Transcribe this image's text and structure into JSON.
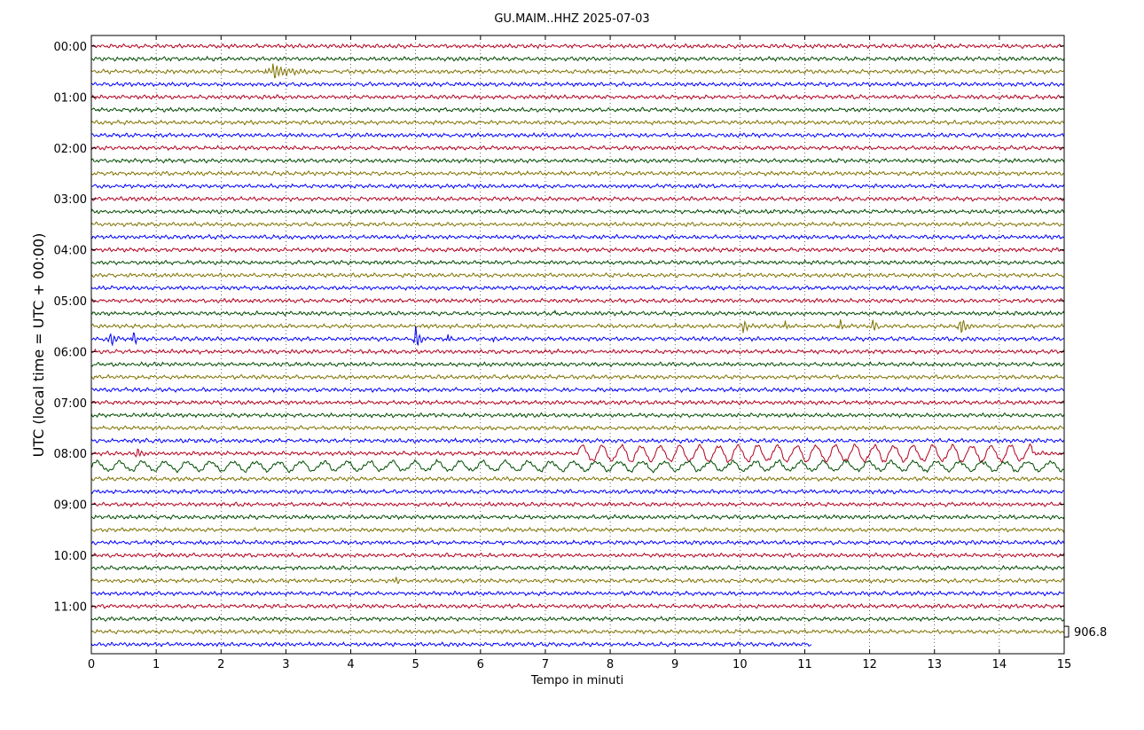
{
  "chart_data": {
    "type": "line",
    "title": "GU.MAIM..HHZ 2025-07-03",
    "xlabel": "Tempo in minuti",
    "ylabel": "UTC (local time = UTC + 00:00)",
    "xlim": [
      0,
      15
    ],
    "x_ticks": [
      "0",
      "1",
      "2",
      "3",
      "4",
      "5",
      "6",
      "7",
      "8",
      "9",
      "10",
      "11",
      "12",
      "13",
      "14",
      "15"
    ],
    "y_ticks": [
      "00:00",
      "01:00",
      "02:00",
      "03:00",
      "04:00",
      "05:00",
      "06:00",
      "07:00",
      "08:00",
      "09:00",
      "10:00",
      "11:00"
    ],
    "rows_per_hour": 4,
    "row_count": 48,
    "last_row_end_minute": 11.1,
    "grid": "vertical dotted at each minute",
    "trace_colors": [
      "#b2001f",
      "#004c00",
      "#807200",
      "#0000ff"
    ],
    "scale_label": "906.8",
    "events": [
      {
        "row": 2,
        "minute": 2.8,
        "amplitude": 1.4,
        "width": 0.6
      },
      {
        "row": 23,
        "minute": 0.3,
        "amplitude": 1.0,
        "width": 0.25
      },
      {
        "row": 23,
        "minute": 0.65,
        "amplitude": 1.6,
        "width": 0.15
      },
      {
        "row": 23,
        "minute": 5.0,
        "amplitude": 2.0,
        "width": 0.15
      },
      {
        "row": 23,
        "minute": 5.5,
        "amplitude": 1.0,
        "width": 0.15
      },
      {
        "row": 23,
        "minute": 6.2,
        "amplitude": 0.6,
        "width": 0.1
      },
      {
        "row": 22,
        "minute": 10.05,
        "amplitude": 1.2,
        "width": 0.15
      },
      {
        "row": 22,
        "minute": 10.7,
        "amplitude": 1.0,
        "width": 0.15
      },
      {
        "row": 22,
        "minute": 11.55,
        "amplitude": 1.2,
        "width": 0.15
      },
      {
        "row": 22,
        "minute": 12.05,
        "amplitude": 1.2,
        "width": 0.15
      },
      {
        "row": 22,
        "minute": 13.4,
        "amplitude": 1.5,
        "width": 0.2
      },
      {
        "row": 32,
        "minute": 0.7,
        "amplitude": 0.8,
        "width": 0.15
      },
      {
        "row": 35,
        "minute": 4.5,
        "amplitude": 0.5,
        "width": 0.15
      },
      {
        "row": 42,
        "minute": 4.7,
        "amplitude": 0.7,
        "width": 0.2
      },
      {
        "row": 21,
        "minute": 7.15,
        "amplitude": 0.5,
        "width": 0.1
      }
    ],
    "enhanced_rows": [
      {
        "row": 32,
        "from_minute": 7.5,
        "to_minute": 14.5,
        "amplitude": 1.2,
        "period_minutes": 0.3
      },
      {
        "row": 33,
        "from_minute": 0,
        "to_minute": 15,
        "amplitude": 0.7,
        "period_minutes": 0.35
      }
    ]
  }
}
